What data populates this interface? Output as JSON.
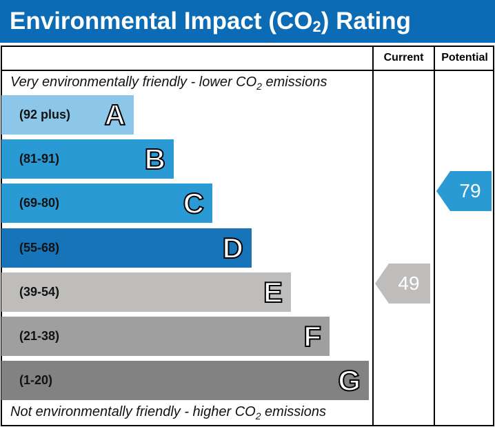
{
  "title": "Environmental Impact (CO",
  "title_sub": "2",
  "title_end": ") Rating",
  "columns": {
    "current": "Current",
    "potential": "Potential"
  },
  "top_note": {
    "pre": "Very environmentally friendly - lower CO",
    "sub": "2",
    "post": " emissions"
  },
  "bottom_note": {
    "pre": "Not environmentally friendly - higher CO",
    "sub": "2",
    "post": " emissions"
  },
  "chart_data": {
    "type": "bar",
    "bands": [
      {
        "letter": "A",
        "range": "(92 plus)",
        "color": "#8cc7ea"
      },
      {
        "letter": "B",
        "range": "(81-91)",
        "color": "#2a9ad4"
      },
      {
        "letter": "C",
        "range": "(69-80)",
        "color": "#2a9ad4"
      },
      {
        "letter": "D",
        "range": "(55-68)",
        "color": "#1874b9"
      },
      {
        "letter": "E",
        "range": "(39-54)",
        "color": "#bebdbb"
      },
      {
        "letter": "F",
        "range": "(21-38)",
        "color": "#a09fa0"
      },
      {
        "letter": "G",
        "range": "(1-20)",
        "color": "#828282"
      }
    ],
    "current": {
      "value": 49,
      "band": "E",
      "color": "#bebdbb"
    },
    "potential": {
      "value": 79,
      "band": "C",
      "color": "#2a9ad4"
    }
  }
}
